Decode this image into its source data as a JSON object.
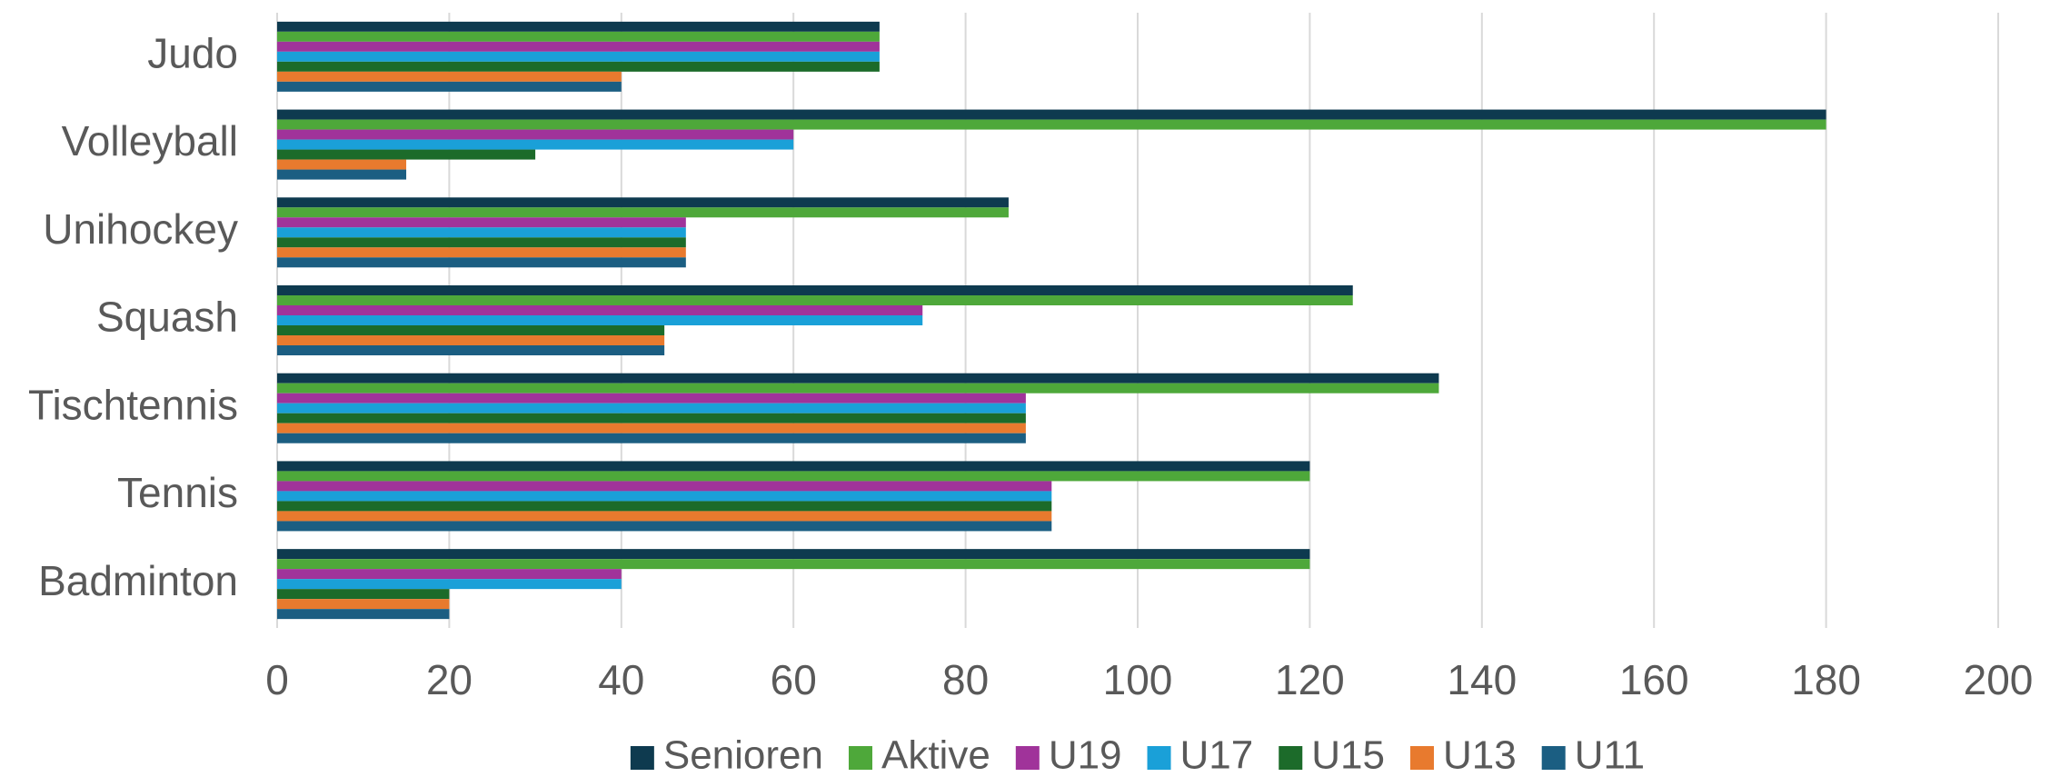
{
  "chart_data": {
    "type": "bar",
    "orientation": "horizontal",
    "categories": [
      "Judo",
      "Volleyball",
      "Unihockey",
      "Squash",
      "Tischtennis",
      "Tennis",
      "Badminton"
    ],
    "series": [
      {
        "name": "Senioren",
        "color": "#0e3a4f",
        "values": [
          70,
          180,
          85,
          125,
          135,
          120,
          120
        ]
      },
      {
        "name": "Aktive",
        "color": "#4ea83a",
        "values": [
          70,
          180,
          85,
          125,
          135,
          120,
          120
        ]
      },
      {
        "name": "U19",
        "color": "#a0339a",
        "values": [
          70,
          60,
          47.5,
          75,
          87,
          90,
          40
        ]
      },
      {
        "name": "U17",
        "color": "#1aa0d8",
        "values": [
          70,
          60,
          47.5,
          75,
          87,
          90,
          40
        ]
      },
      {
        "name": "U15",
        "color": "#1c6b2a",
        "values": [
          70,
          30,
          47.5,
          45,
          87,
          90,
          20
        ]
      },
      {
        "name": "U13",
        "color": "#e87a2e",
        "values": [
          40,
          15,
          47.5,
          45,
          87,
          90,
          20
        ]
      },
      {
        "name": "U11",
        "color": "#1b5e82",
        "values": [
          40,
          15,
          47.5,
          45,
          87,
          90,
          20
        ]
      }
    ],
    "xlim": [
      0,
      200
    ],
    "xticks": [
      0,
      20,
      40,
      60,
      80,
      100,
      120,
      140,
      160,
      180,
      200
    ],
    "grid": true,
    "legend": "bottom"
  }
}
